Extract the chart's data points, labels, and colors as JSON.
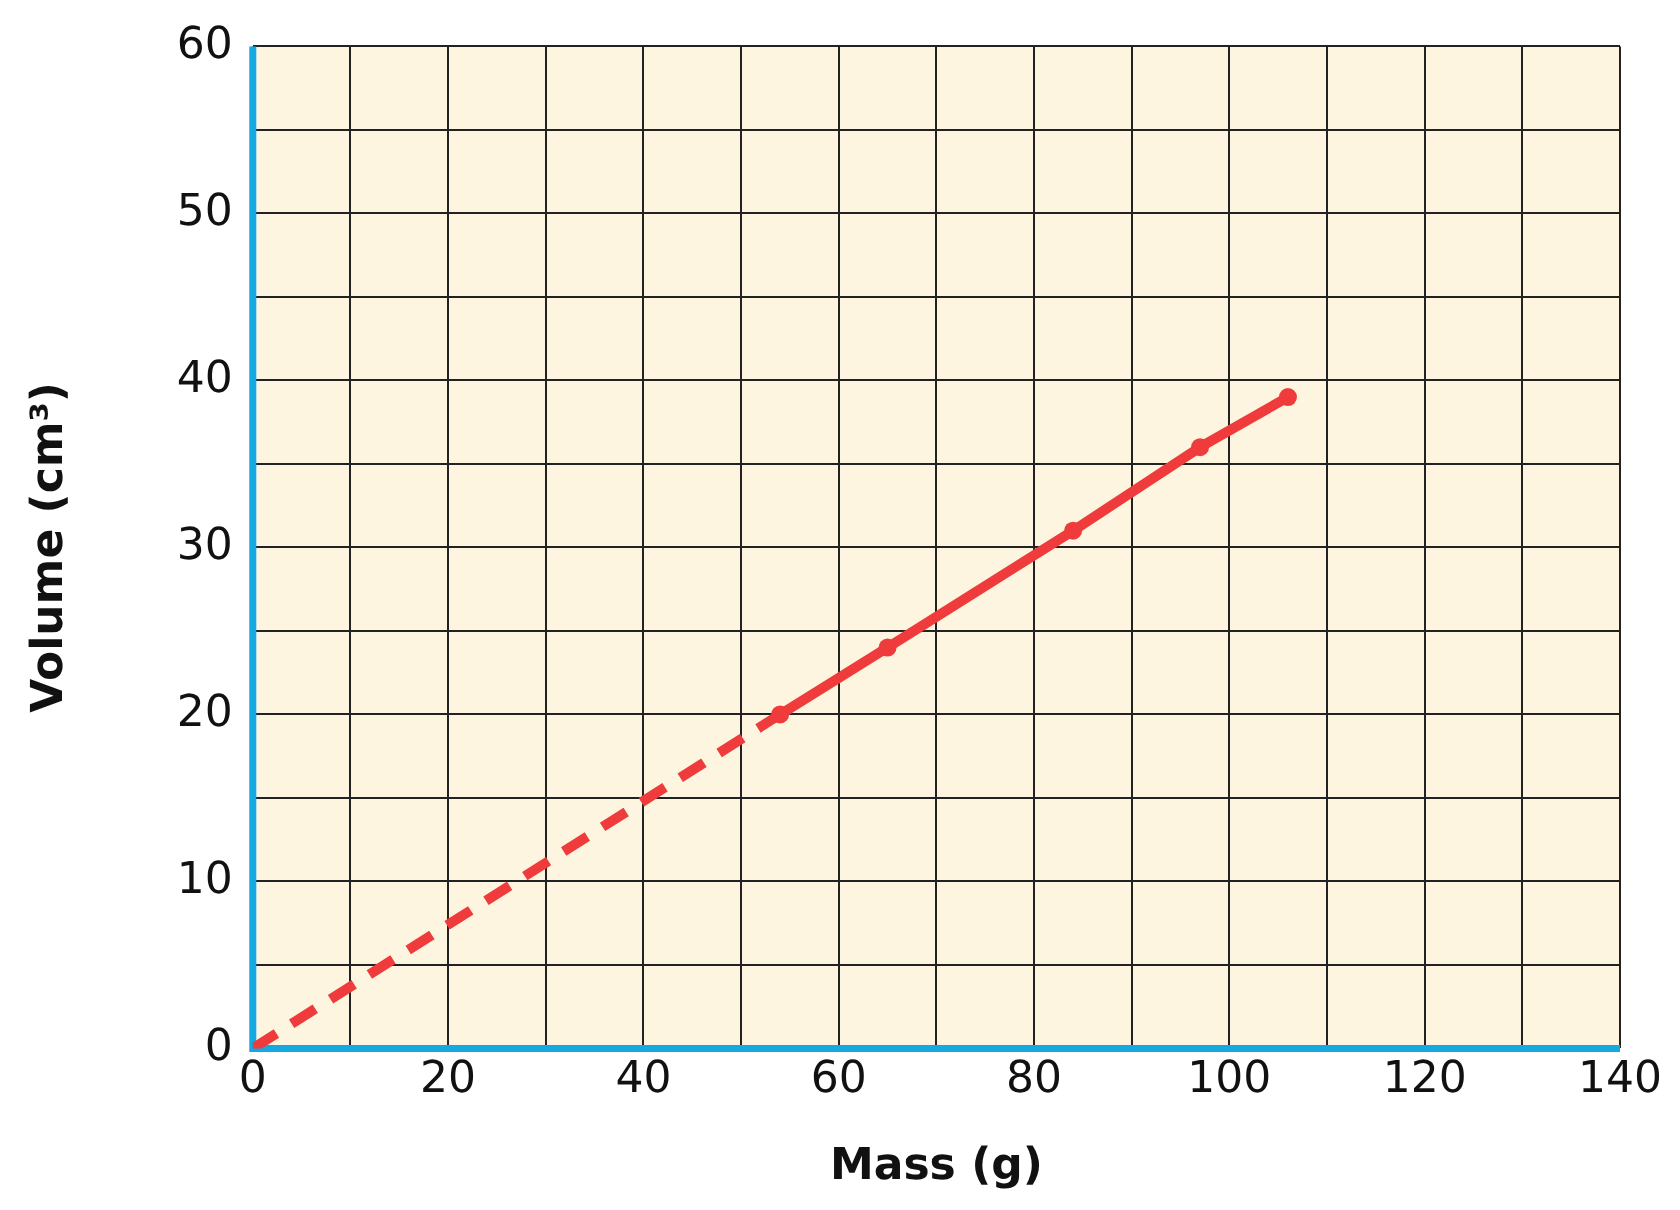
{
  "chart_data": {
    "type": "line",
    "xlabel": "Mass (g)",
    "ylabel": "Volume (cm³)",
    "xlim": [
      0,
      140
    ],
    "ylim": [
      0,
      60
    ],
    "xticks": [
      0,
      {
        "value": 10,
        "label": null
      },
      20,
      {
        "value": 30,
        "label": null
      },
      40,
      {
        "value": 50,
        "label": null
      },
      60,
      {
        "value": 70,
        "label": null
      },
      80,
      {
        "value": 90,
        "label": null
      },
      100,
      {
        "value": 110,
        "label": null
      },
      120,
      {
        "value": 130,
        "label": null
      },
      140
    ],
    "yticks": [
      0,
      {
        "value": 5,
        "label": null
      },
      10,
      {
        "value": 15,
        "label": null
      },
      20,
      {
        "value": 25,
        "label": null
      },
      30,
      {
        "value": 35,
        "label": null
      },
      40,
      {
        "value": 45,
        "label": null
      },
      50,
      {
        "value": 55,
        "label": null
      },
      60
    ],
    "grid": true,
    "series": [
      {
        "color": "#ef3b3b",
        "x": [
          0,
          54
        ],
        "values": [
          0,
          20
        ],
        "line_style": "dashed"
      },
      {
        "color": "#ef3b3b",
        "x": [
          54,
          65,
          84,
          97,
          106
        ],
        "values": [
          20,
          24,
          31,
          36,
          39
        ],
        "line_style": "solid",
        "marker": "circle"
      }
    ]
  }
}
